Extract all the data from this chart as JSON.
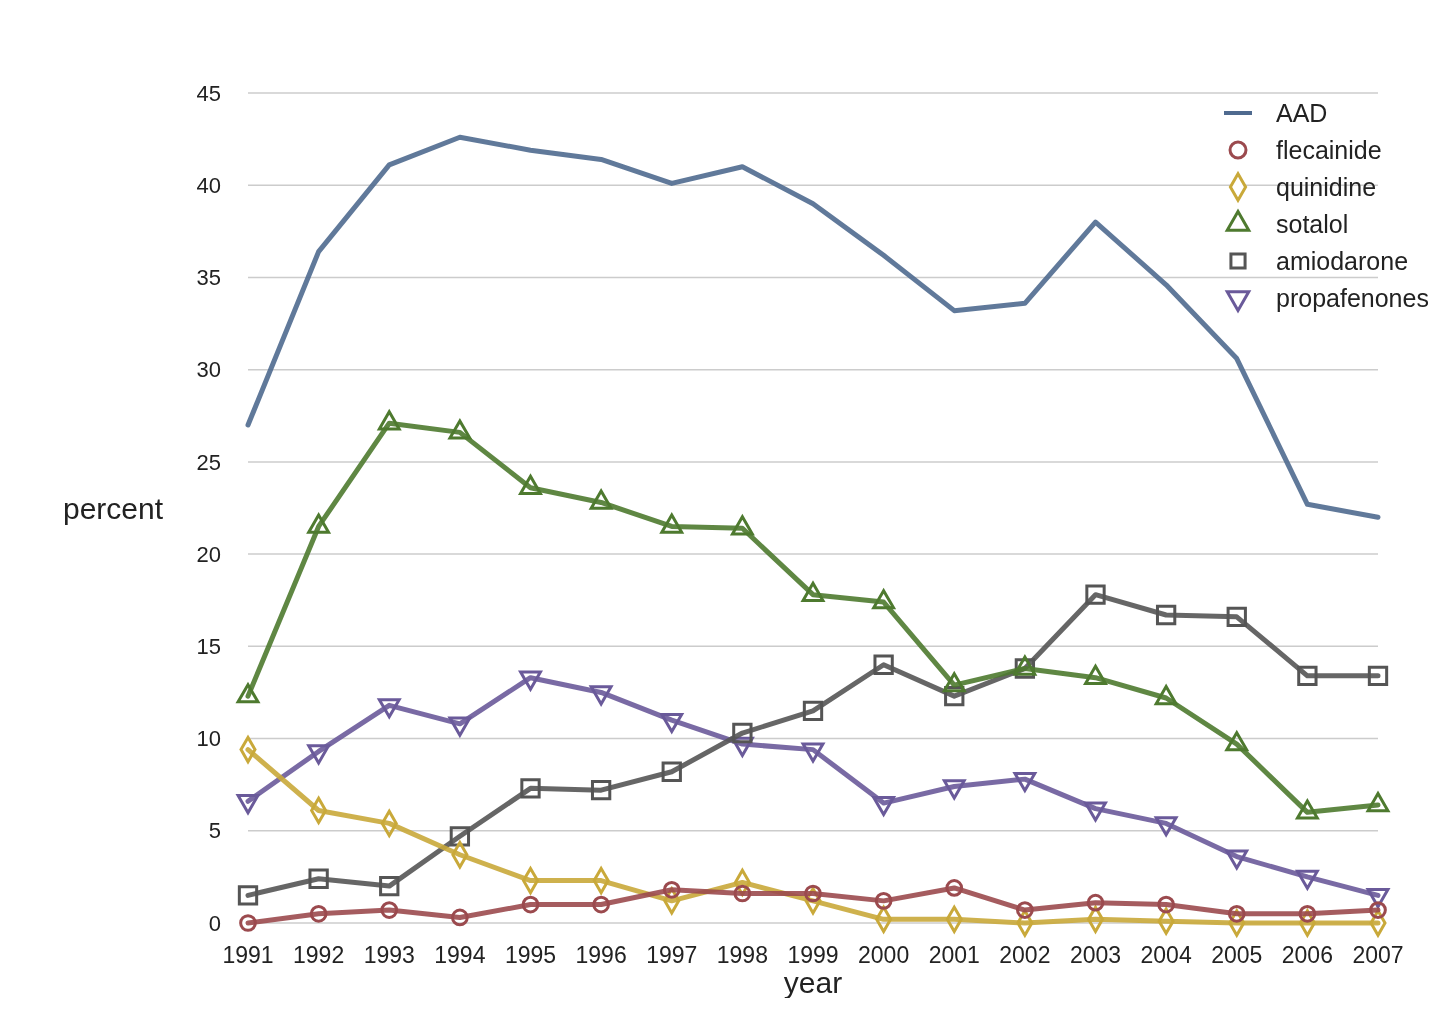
{
  "chart_data": {
    "type": "line",
    "xlabel": "year",
    "ylabel": "percent",
    "categories": [
      "1991",
      "1992",
      "1993",
      "1994",
      "1995",
      "1996",
      "1997",
      "1998",
      "1999",
      "2000",
      "2001",
      "2002",
      "2003",
      "2004",
      "2005",
      "2006",
      "2007"
    ],
    "ylim": [
      0,
      45
    ],
    "yticks": [
      0,
      5,
      10,
      15,
      20,
      25,
      30,
      35,
      40,
      45
    ],
    "grid": "y",
    "legend": "top right",
    "series": [
      {
        "name": "AAD",
        "color": "#4f6a8f",
        "marker": "none",
        "values": [
          27,
          36.4,
          41.1,
          42.6,
          41.9,
          41.4,
          40.1,
          41,
          39,
          36.2,
          33.2,
          33.6,
          38,
          34.6,
          30.6,
          22.7,
          22
        ]
      },
      {
        "name": "flecainide",
        "color": "#9b4a4e",
        "marker": "circle",
        "values": [
          0,
          0.5,
          0.7,
          0.3,
          1,
          1,
          1.8,
          1.6,
          1.6,
          1.2,
          1.9,
          0.7,
          1.1,
          1,
          0.5,
          0.5,
          0.7
        ]
      },
      {
        "name": "quinidine",
        "color": "#c9a93a",
        "marker": "diamond",
        "values": [
          9.4,
          6.1,
          5.4,
          3.7,
          2.3,
          2.3,
          1.2,
          2.2,
          1.2,
          0.2,
          0.2,
          0,
          0.2,
          0.1,
          0,
          0,
          0
        ]
      },
      {
        "name": "sotalol",
        "color": "#4e7a2f",
        "marker": "triangle",
        "values": [
          12.3,
          21.5,
          27.1,
          26.6,
          23.6,
          22.8,
          21.5,
          21.4,
          17.8,
          17.4,
          12.9,
          13.8,
          13.3,
          12.2,
          9.7,
          6,
          6.4
        ]
      },
      {
        "name": "amiodarone",
        "color": "#555555",
        "marker": "square",
        "values": [
          1.5,
          2.4,
          2,
          4.7,
          7.3,
          7.2,
          8.2,
          10.3,
          11.5,
          14,
          12.3,
          13.8,
          17.8,
          16.7,
          16.6,
          13.4,
          13.4
        ]
      },
      {
        "name": "propafenones",
        "color": "#6a5a9a",
        "marker": "triangle-down",
        "values": [
          6.6,
          9.3,
          11.8,
          10.8,
          13.3,
          12.5,
          11,
          9.7,
          9.4,
          6.5,
          7.4,
          7.8,
          6.2,
          5.4,
          3.6,
          2.5,
          1.5
        ]
      }
    ]
  }
}
